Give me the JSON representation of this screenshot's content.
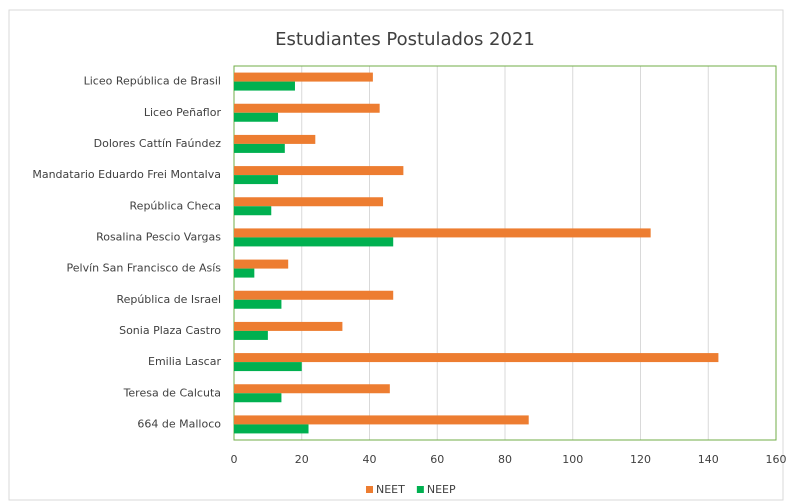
{
  "chart_data": {
    "type": "bar",
    "orientation": "horizontal",
    "title": "Estudiantes Postulados 2021",
    "categories": [
      "Liceo República de Brasil",
      "Liceo Peñaflor",
      "Dolores Cattín Faúndez",
      "Mandatario Eduardo Frei Montalva",
      "República Checa",
      "Rosalina Pescio Vargas",
      "Pelvín San Francisco de Asís",
      "República de Israel",
      "Sonia Plaza Castro",
      "Emilia Lascar",
      "Teresa de Calcuta",
      "664 de Malloco"
    ],
    "series": [
      {
        "name": "NEET",
        "color": "#ED7D31",
        "values": [
          41,
          43,
          24,
          50,
          44,
          123,
          16,
          47,
          32,
          143,
          46,
          87
        ]
      },
      {
        "name": "NEEP",
        "color": "#00B050",
        "values": [
          18,
          13,
          15,
          13,
          11,
          47,
          6,
          14,
          10,
          20,
          14,
          22
        ]
      }
    ],
    "xlim": [
      0,
      160
    ],
    "xticks": [
      0,
      20,
      40,
      60,
      80,
      100,
      120,
      140,
      160
    ],
    "grid": true,
    "legend": "bottom"
  }
}
